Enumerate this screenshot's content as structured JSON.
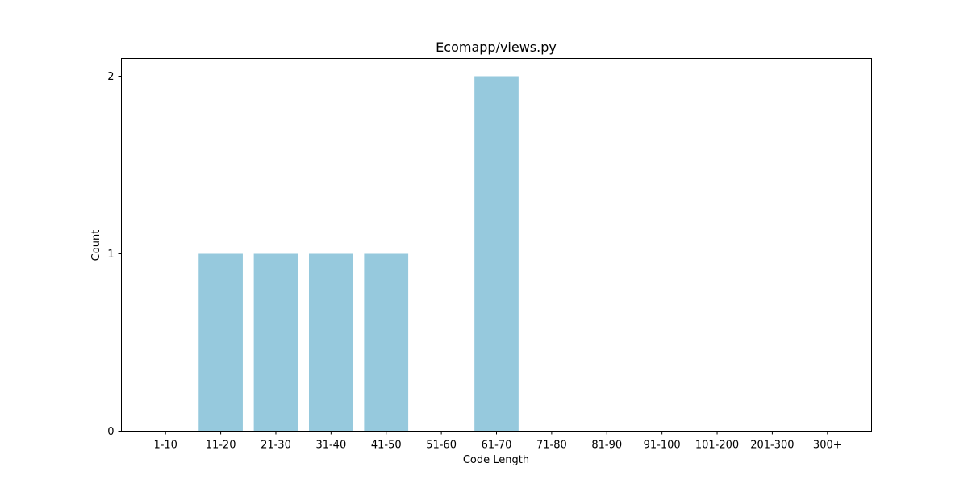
{
  "chart_data": {
    "type": "bar",
    "title": "Ecomapp/views.py",
    "xlabel": "Code Length",
    "ylabel": "Count",
    "categories": [
      "1-10",
      "11-20",
      "21-30",
      "31-40",
      "41-50",
      "51-60",
      "61-70",
      "71-80",
      "81-90",
      "91-100",
      "101-200",
      "201-300",
      "300+"
    ],
    "values": [
      0,
      1,
      1,
      1,
      1,
      0,
      2,
      0,
      0,
      0,
      0,
      0,
      0
    ],
    "ylim": [
      0,
      2.1
    ],
    "yticks": [
      0,
      1,
      2
    ],
    "grid": false,
    "bar_color": "#96c9dd",
    "axis_color": "#000000"
  }
}
